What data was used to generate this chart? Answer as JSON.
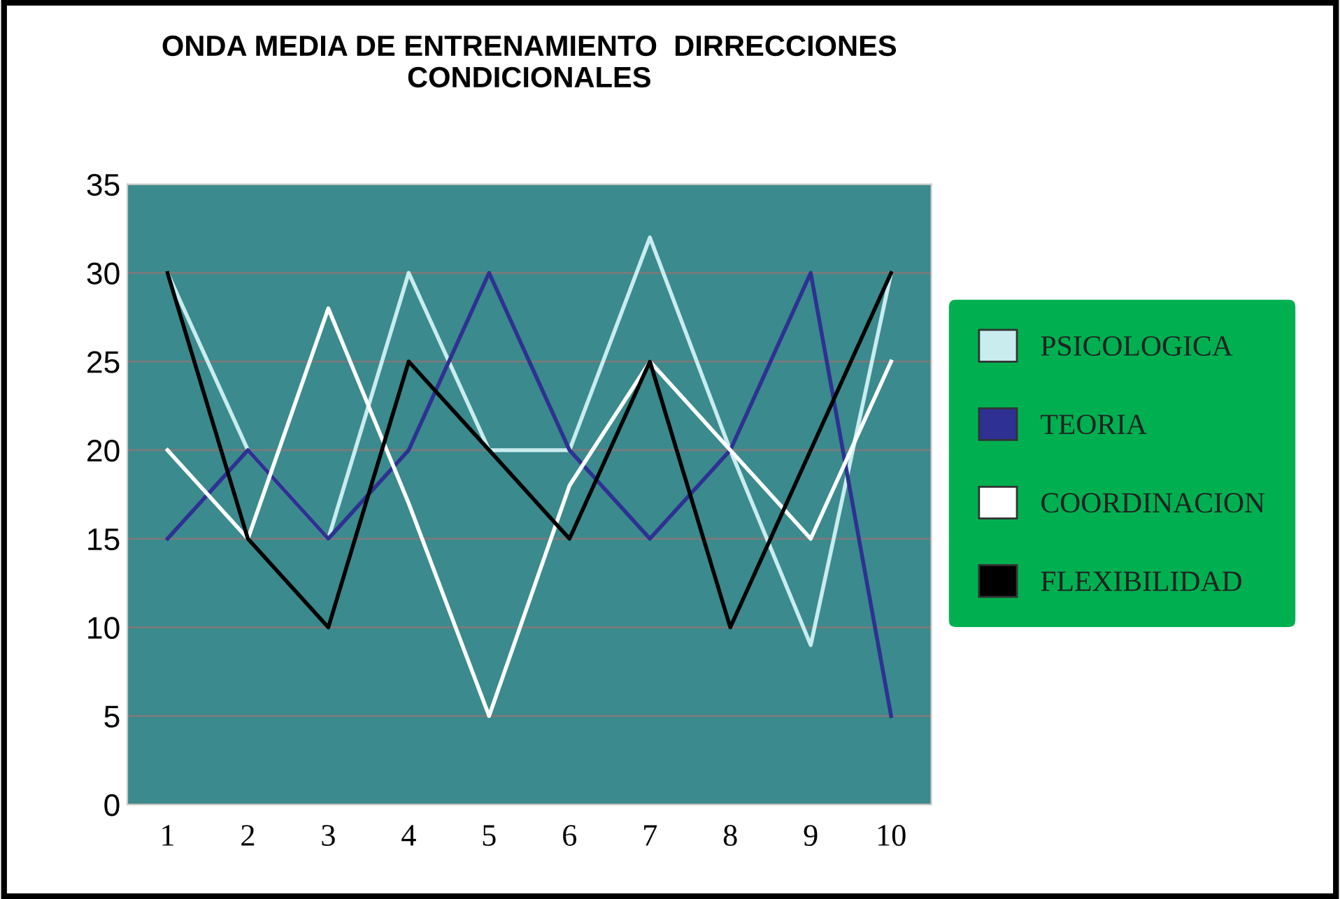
{
  "chart_data": {
    "type": "line",
    "title": "ONDA MEDIA DE ENTRENAMIENTO  DIRRECCIONES\nCONDICIONALES",
    "categories": [
      "1",
      "2",
      "3",
      "4",
      "5",
      "6",
      "7",
      "8",
      "9",
      "10"
    ],
    "series": [
      {
        "name": "PSICOLOGICA",
        "color": "#c9ecee",
        "values": [
          30,
          20,
          15,
          30,
          20,
          20,
          32,
          20,
          9,
          30
        ]
      },
      {
        "name": "TEORIA",
        "color": "#2e3192",
        "values": [
          15,
          20,
          15,
          20,
          30,
          20,
          15,
          20,
          30,
          5
        ]
      },
      {
        "name": "COORDINACION",
        "color": "#ffffff",
        "values": [
          20,
          15,
          28,
          17,
          5,
          18,
          25,
          20,
          15,
          25
        ]
      },
      {
        "name": "FLEXIBILIDAD",
        "color": "#000000",
        "values": [
          30,
          15,
          10,
          25,
          20,
          15,
          25,
          10,
          20,
          30
        ]
      }
    ],
    "ylim": [
      0,
      35
    ],
    "yticks": [
      0,
      5,
      10,
      15,
      20,
      25,
      30,
      35
    ],
    "grid": "y",
    "legend": "right",
    "marker": "none",
    "line_style": "solid"
  }
}
